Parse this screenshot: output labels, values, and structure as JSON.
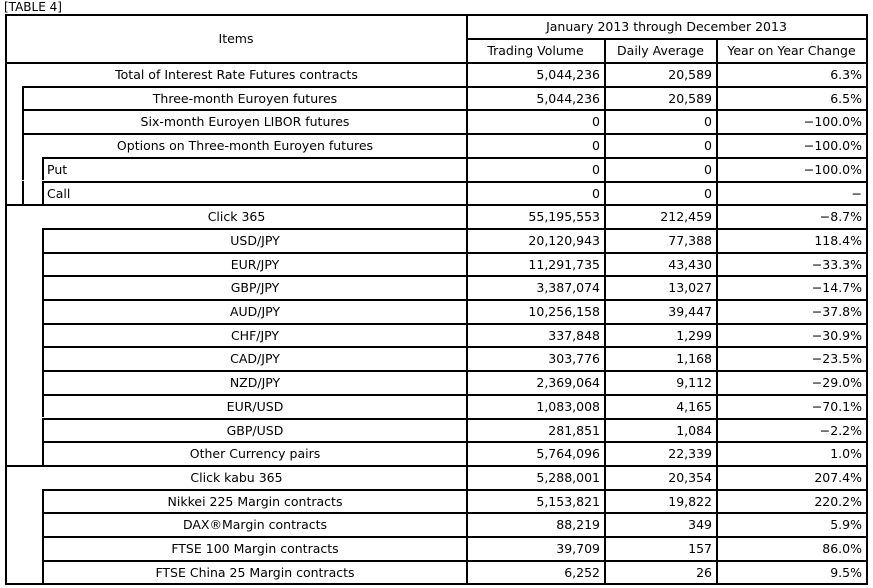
{
  "caption": "[TABLE 4]",
  "header": {
    "items": "Items",
    "period": "January 2013 through December 2013",
    "columns": [
      "Trading Volume",
      "Daily Average",
      "Year on Year Change"
    ]
  },
  "rows": [
    {
      "label": "Total of Interest Rate Futures contracts",
      "level": 0,
      "volume": "5,044,236",
      "daily": "20,589",
      "yoy": "6.3%"
    },
    {
      "label": "Three-month Euroyen futures",
      "level": 1,
      "volume": "5,044,236",
      "daily": "20,589",
      "yoy": "6.5%"
    },
    {
      "label": "Six-month Euroyen LIBOR futures",
      "level": 1,
      "volume": "0",
      "daily": "0",
      "yoy": "−100.0%"
    },
    {
      "label": "Options on Three-month Euroyen futures",
      "level": 1,
      "volume": "0",
      "daily": "0",
      "yoy": "−100.0%"
    },
    {
      "label": "Put",
      "level": 2,
      "volume": "0",
      "daily": "0",
      "yoy": "−100.0%"
    },
    {
      "label": "Call",
      "level": 2,
      "volume": "0",
      "daily": "0",
      "yoy": "−"
    },
    {
      "label": "Click 365",
      "level": 0,
      "volume": "55,195,553",
      "daily": "212,459",
      "yoy": "−8.7%"
    },
    {
      "label": "USD/JPY",
      "level": 1,
      "volume": "20,120,943",
      "daily": "77,388",
      "yoy": "118.4%"
    },
    {
      "label": "EUR/JPY",
      "level": 1,
      "volume": "11,291,735",
      "daily": "43,430",
      "yoy": "−33.3%"
    },
    {
      "label": "GBP/JPY",
      "level": 1,
      "volume": "3,387,074",
      "daily": "13,027",
      "yoy": "−14.7%"
    },
    {
      "label": "AUD/JPY",
      "level": 1,
      "volume": "10,256,158",
      "daily": "39,447",
      "yoy": "−37.8%"
    },
    {
      "label": "CHF/JPY",
      "level": 1,
      "volume": "337,848",
      "daily": "1,299",
      "yoy": "−30.9%"
    },
    {
      "label": "CAD/JPY",
      "level": 1,
      "volume": "303,776",
      "daily": "1,168",
      "yoy": "−23.5%"
    },
    {
      "label": "NZD/JPY",
      "level": 1,
      "volume": "2,369,064",
      "daily": "9,112",
      "yoy": "−29.0%"
    },
    {
      "label": "EUR/USD",
      "level": 1,
      "volume": "1,083,008",
      "daily": "4,165",
      "yoy": "−70.1%"
    },
    {
      "label": "GBP/USD",
      "level": 1,
      "volume": "281,851",
      "daily": "1,084",
      "yoy": "−2.2%"
    },
    {
      "label": "Other Currency pairs",
      "level": 1,
      "volume": "5,764,096",
      "daily": "22,339",
      "yoy": "1.0%"
    },
    {
      "label": "Click kabu 365",
      "level": 0,
      "volume": "5,288,001",
      "daily": "20,354",
      "yoy": "207.4%"
    },
    {
      "label": "Nikkei 225 Margin contracts",
      "level": 1,
      "volume": "5,153,821",
      "daily": "19,822",
      "yoy": "220.2%"
    },
    {
      "label": "DAX®Margin contracts",
      "level": 1,
      "volume": "88,219",
      "daily": "349",
      "yoy": "5.9%"
    },
    {
      "label": "FTSE 100 Margin contracts",
      "level": 1,
      "volume": "39,709",
      "daily": "157",
      "yoy": "86.0%"
    },
    {
      "label": "FTSE China 25 Margin contracts",
      "level": 1,
      "volume": "6,252",
      "daily": "26",
      "yoy": "9.5%"
    }
  ]
}
